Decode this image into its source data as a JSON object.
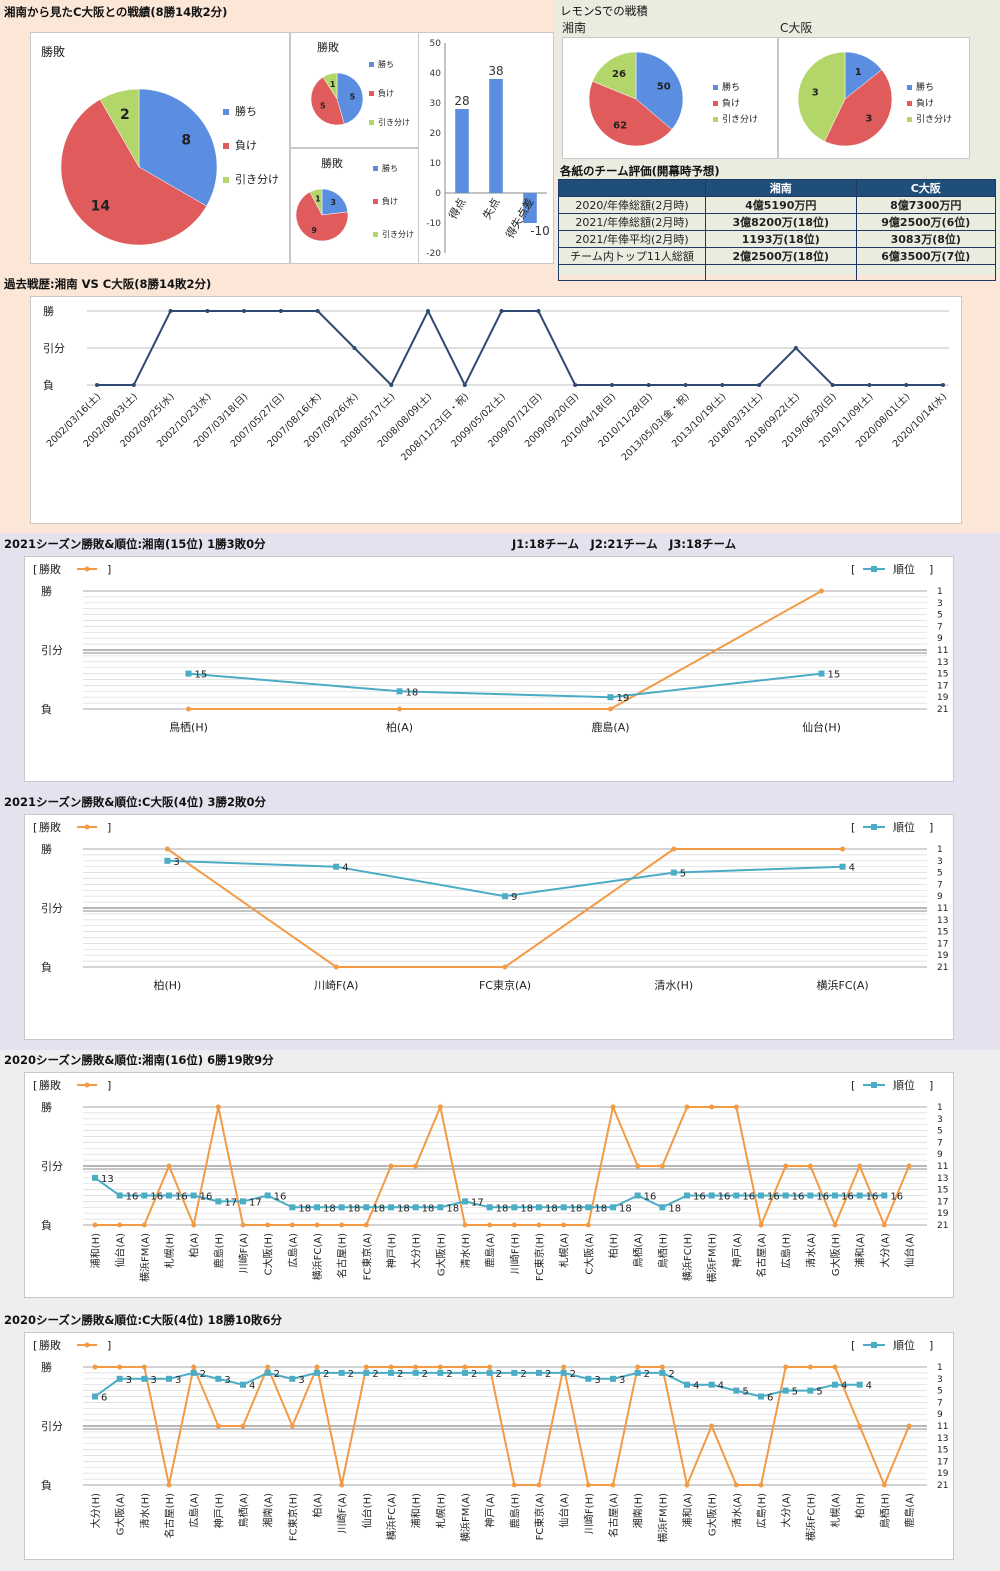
{
  "top": {
    "title": "湘南から見たC大阪との戦績(8勝14敗2分)",
    "big_pie": {
      "title": "勝敗",
      "legend": [
        "勝ち",
        "負け",
        "引き分け"
      ],
      "values": [
        8,
        14,
        2
      ]
    },
    "pie_a": {
      "title": "勝敗",
      "legend": [
        "勝ち",
        "負け",
        "引き分け"
      ],
      "values": [
        5,
        5,
        1
      ]
    },
    "pie_b": {
      "title": "勝敗",
      "legend": [
        "勝ち",
        "負け",
        "引き分け"
      ],
      "values": [
        3,
        9,
        1
      ]
    },
    "bars": {
      "categories": [
        "得点",
        "失点",
        "得失点差"
      ],
      "values": [
        28,
        38,
        -10
      ],
      "yticks": [
        "50",
        "40",
        "30",
        "20",
        "10",
        "0",
        "-10",
        "-20"
      ]
    }
  },
  "lemon": {
    "title": "レモンSでの戦積",
    "shonan": {
      "label": "湘南",
      "legend": [
        "勝ち",
        "負け",
        "引き分け"
      ],
      "values": [
        50,
        62,
        26
      ]
    },
    "cosaka": {
      "label": "C大阪",
      "legend": [
        "勝ち",
        "負け",
        "引き分け"
      ],
      "values": [
        1,
        3,
        3
      ]
    }
  },
  "eval_table": {
    "title": "各紙のチーム評価(開幕時予想)",
    "header": [
      "",
      "湘南",
      "C大阪"
    ],
    "rows": [
      [
        "2020/年俸総額(2月時)",
        "4億5190万円",
        "8億7300万円"
      ],
      [
        "2021/年俸総額(2月時)",
        "3億8200万(18位)",
        "9億2500万(6位)"
      ],
      [
        "2021/年俸平均(2月時)",
        "1193万(18位)",
        "3083万(8位)"
      ],
      [
        "チーム内トップ11人総額",
        "2億2500万(18位)",
        "6億3500万(7位)"
      ],
      [
        "",
        "",
        ""
      ]
    ]
  },
  "history": {
    "title": "過去戦歴:湘南 VS C大阪(8勝14敗2分)",
    "ylabels": [
      "勝",
      "引分",
      "負"
    ],
    "dates": [
      "2002/03/16(土)",
      "2002/08/03(土)",
      "2002/09/25(水)",
      "2002/10/23(水)",
      "2007/03/18(日)",
      "2007/05/27(日)",
      "2007/08/16(木)",
      "2007/09/26(水)",
      "2008/05/17(土)",
      "2008/08/09(土)",
      "2008/11/23(日・祝)",
      "2009/05/02(土)",
      "2009/07/12(日)",
      "2009/09/20(日)",
      "2010/04/18(日)",
      "2010/11/28(日)",
      "2013/05/03(金・祝)",
      "2013/10/19(土)",
      "2018/03/31(土)",
      "2018/09/22(土)",
      "2019/06/30(日)",
      "2019/11/09(土)",
      "2020/08/01(土)",
      "2020/10/14(水)"
    ],
    "results": [
      "L",
      "L",
      "W",
      "W",
      "W",
      "W",
      "W",
      "D",
      "L",
      "W",
      "L",
      "W",
      "W",
      "L",
      "L",
      "L",
      "L",
      "L",
      "L",
      "D",
      "L",
      "L",
      "L",
      "L"
    ]
  },
  "season_legend": {
    "result": "勝敗",
    "rank": "順位",
    "bracket_open": "[",
    "bracket_close": "]"
  },
  "league_note": "J1:18チーム　J2:21チーム　J3:18チーム",
  "rank_ticks": [
    "1",
    "3",
    "5",
    "7",
    "9",
    "11",
    "13",
    "15",
    "17",
    "19",
    "21"
  ],
  "result_labels": [
    "勝",
    "引分",
    "負"
  ],
  "charts": [
    {
      "title": "2021シーズン勝敗&順位:湘南(15位) 1勝3敗0分",
      "type": "line",
      "categories": [
        "鳥栖(H)",
        "柏(A)",
        "鹿島(A)",
        "仙台(H)"
      ],
      "results": [
        "L",
        "L",
        "L",
        "W"
      ],
      "ranks": [
        15,
        18,
        19,
        15
      ],
      "rotate": false
    },
    {
      "title": "2021シーズン勝敗&順位:C大阪(4位) 3勝2敗0分",
      "type": "line",
      "categories": [
        "柏(H)",
        "川崎F(A)",
        "FC東京(A)",
        "清水(H)",
        "横浜FC(A)"
      ],
      "results": [
        "W",
        "L",
        "L",
        "W",
        "W"
      ],
      "ranks": [
        3,
        4,
        9,
        5,
        4
      ],
      "rotate": false
    },
    {
      "title": "2020シーズン勝敗&順位:湘南(16位) 6勝19敗9分",
      "type": "line",
      "categories": [
        "浦和(H)",
        "仙台(A)",
        "横浜FM(A)",
        "札幌(H)",
        "柏(A)",
        "鹿島(H)",
        "川崎F(A)",
        "C大阪(H)",
        "広島(A)",
        "横浜FC(A)",
        "名古屋(H)",
        "FC東京(A)",
        "神戸(H)",
        "大分(H)",
        "G大阪(H)",
        "清水(H)",
        "鹿島(A)",
        "川崎F(H)",
        "FC東京(H)",
        "札幌(A)",
        "C大阪(A)",
        "柏(H)",
        "鳥栖(A)",
        "鳥栖(H)",
        "横浜FC(H)",
        "横浜FM(H)",
        "神戸(A)",
        "名古屋(A)",
        "広島(H)",
        "清水(A)",
        "G大阪(H)",
        "浦和(A)",
        "大分(A)",
        "仙台(A)"
      ],
      "results": [
        "L",
        "L",
        "L",
        "D",
        "L",
        "W",
        "L",
        "L",
        "L",
        "L",
        "L",
        "L",
        "D",
        "D",
        "W",
        "L",
        "L",
        "L",
        "L",
        "L",
        "L",
        "W",
        "D",
        "D",
        "W",
        "W",
        "W",
        "L",
        "D",
        "D",
        "L",
        "D",
        "L",
        "D"
      ],
      "ranks": [
        13,
        16,
        16,
        16,
        16,
        17,
        17,
        16,
        18,
        18,
        18,
        18,
        18,
        18,
        18,
        17,
        18,
        18,
        18,
        18,
        18,
        18,
        16,
        18,
        16,
        16,
        16,
        16,
        16,
        16,
        16,
        16,
        16,
        null
      ],
      "rotate": true
    },
    {
      "title": "2020シーズン勝敗&順位:C大阪(4位) 18勝10敗6分",
      "type": "line",
      "categories": [
        "大分(H)",
        "G大阪(A)",
        "清水(H)",
        "名古屋(H)",
        "広島(A)",
        "神戸(H)",
        "鳥栖(A)",
        "湘南(A)",
        "FC東京(H)",
        "柏(A)",
        "川崎F(A)",
        "仙台(H)",
        "横浜FC(A)",
        "浦和(H)",
        "札幌(H)",
        "横浜FM(A)",
        "神戸(A)",
        "鹿島(H)",
        "FC東京(A)",
        "仙台(A)",
        "川崎F(H)",
        "名古屋(A)",
        "湘南(H)",
        "横浜FM(H)",
        "浦和(A)",
        "G大阪(H)",
        "清水(A)",
        "広島(H)",
        "大分(A)",
        "横浜FC(H)",
        "札幌(A)",
        "柏(H)",
        "鳥栖(H)",
        "鹿島(A)"
      ],
      "results": [
        "W",
        "W",
        "W",
        "L",
        "W",
        "D",
        "D",
        "W",
        "D",
        "W",
        "L",
        "W",
        "W",
        "W",
        "W",
        "W",
        "W",
        "L",
        "L",
        "W",
        "L",
        "L",
        "W",
        "W",
        "L",
        "D",
        "L",
        "L",
        "W",
        "W",
        "W",
        "D",
        "L",
        "D"
      ],
      "ranks": [
        6,
        3,
        3,
        3,
        2,
        3,
        4,
        2,
        3,
        2,
        2,
        2,
        2,
        2,
        2,
        2,
        2,
        2,
        2,
        2,
        3,
        3,
        2,
        2,
        4,
        4,
        5,
        6,
        5,
        5,
        4,
        4,
        null,
        null
      ],
      "rotate": true
    }
  ],
  "colors": {
    "result_line": "#f39a45",
    "rank_line": "#4bacc6",
    "history_line": "#2e4a73",
    "win": "#5b8ee0",
    "loss": "#e05c5c",
    "draw": "#b3d66b",
    "bar": "#5b8ee0",
    "table_header": "#1f4e79"
  }
}
